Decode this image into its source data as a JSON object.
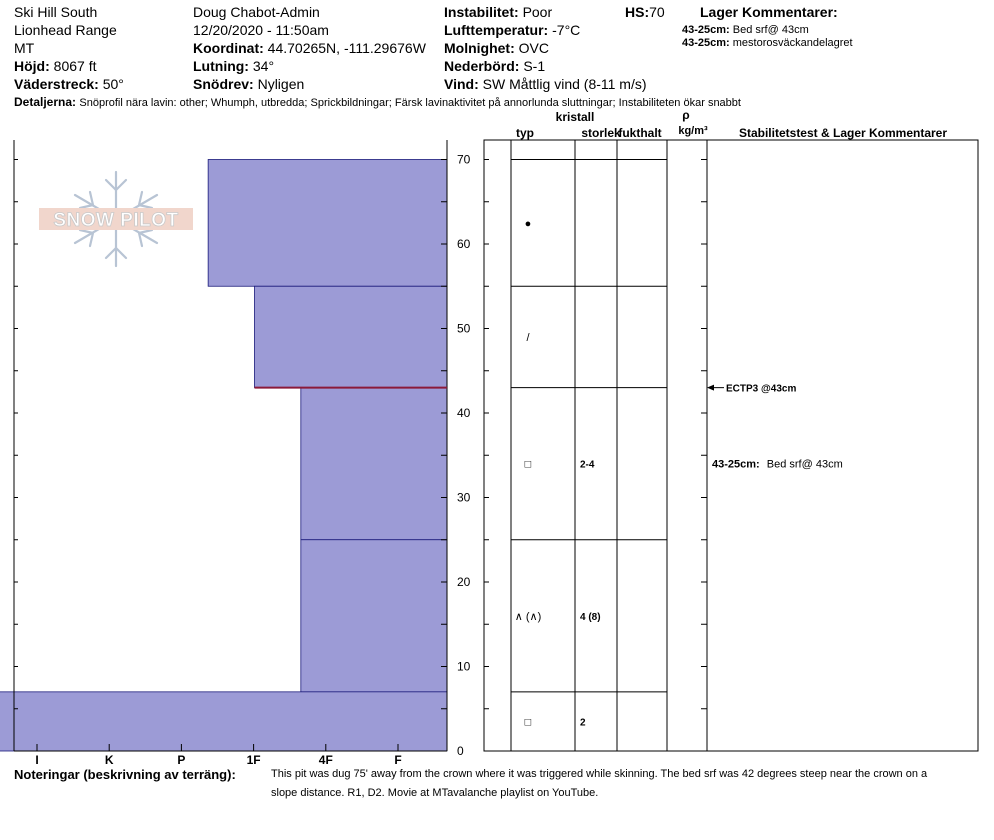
{
  "header": {
    "location": "Ski Hill South",
    "range": "Lionhead Range",
    "state": "MT",
    "elevation_label": "Höjd:",
    "elevation_value": "8067 ft",
    "aspect_label": "Väderstreck:",
    "aspect_value": "50°",
    "observer": "Doug Chabot-Admin",
    "datetime": "12/20/2020 - 11:50am",
    "coord_label": "Koordinat:",
    "coord_value": "44.70265N, -111.29676W",
    "slope_label": "Lutning:",
    "slope_value": "34°",
    "wind_loading_label": "Snödrev:",
    "wind_loading_value": "Nyligen",
    "instability_label": "Instabilitet:",
    "instability_value": "Poor",
    "air_temp_label": "Lufttemperatur:",
    "air_temp_value": "-7°C",
    "sky_label": "Molnighet:",
    "sky_value": "OVC",
    "precip_label": "Nederbörd:",
    "precip_value": "S-1",
    "wind_label": "Vind:",
    "wind_value": "SW  Måttlig vind (8-11 m/s)",
    "hs_label": "HS:",
    "hs_value": "70",
    "layer_comments_title": "Lager Kommentarer:",
    "layer_comment_1_label": "43-25cm:",
    "layer_comment_1_text": "Bed srf@ 43cm",
    "layer_comment_2_label": "43-25cm:",
    "layer_comment_2_text": "mestorosväckandelagret",
    "details_label": "Detaljerna:",
    "details_text": "Snöprofil nära lavin: other;  Whumph, utbredda;  Sprickbildningar;  Färsk lavinaktivitet på annorlunda sluttningar;  Instabiliteten ökar snabbt"
  },
  "logo_text": "SNOW PILOT",
  "table_headers": {
    "crystal": "kristall",
    "type": "typ",
    "size": "storlek",
    "moisture": "fukthalt",
    "rho": "ρ",
    "density_unit": "kg/m³",
    "stability": "Stabilitetstest & Lager Kommentarer"
  },
  "chart_data": {
    "type": "bar",
    "x_ticks": [
      "I",
      "K",
      "P",
      "1F",
      "4F",
      "F"
    ],
    "y_ticks": [
      0,
      10,
      20,
      30,
      40,
      50,
      60,
      70
    ],
    "ylim": [
      0,
      70
    ],
    "hardness_axis_reversed": true,
    "grid": false,
    "layers": [
      {
        "top": 70,
        "bottom": 55,
        "hardness": "4F-F",
        "hardness_index": 3.35
      },
      {
        "top": 55,
        "bottom": 43,
        "hardness": "F+",
        "hardness_index": 2.7
      },
      {
        "top": 43,
        "bottom": 25,
        "hardness": "F",
        "hardness_index": 2.05
      },
      {
        "top": 25,
        "bottom": 7,
        "hardness": "F",
        "hardness_index": 2.05
      },
      {
        "top": 7,
        "bottom": 0,
        "hardness": "1F",
        "hardness_index": 8.15
      }
    ],
    "layer_details": [
      {
        "top": 70,
        "bottom": 55,
        "grain_symbol": "●",
        "size": ""
      },
      {
        "top": 55,
        "bottom": 43,
        "grain_symbol": "/",
        "size": ""
      },
      {
        "top": 43,
        "bottom": 25,
        "grain_symbol": "□",
        "size": "2-4"
      },
      {
        "top": 25,
        "bottom": 7,
        "grain_symbol": "∧ (∧)",
        "size": "4 (8)"
      },
      {
        "top": 7,
        "bottom": 0,
        "grain_symbol": "□",
        "size": "2"
      }
    ],
    "tests": [
      {
        "depth": 43,
        "label": "ECTP3 @43cm"
      }
    ],
    "test_layer_comment": {
      "depth": 34,
      "label": "43-25cm:",
      "text": "Bed srf@ 43cm"
    },
    "weak_layer_depth": 43,
    "colors": {
      "fill": "#9c9bd6",
      "outline": "#1a1a7a",
      "weak_layer": "#8b1a3a"
    }
  },
  "notes": {
    "label": "Noteringar (beskrivning av terräng):",
    "line1": "This pit was dug 75' away from the crown where it was triggered while skinning. The bed srf was 42 degrees steep near the crown on a",
    "line2": "slope distance. R1, D2. Movie at MTavalanche playlist on YouTube."
  }
}
